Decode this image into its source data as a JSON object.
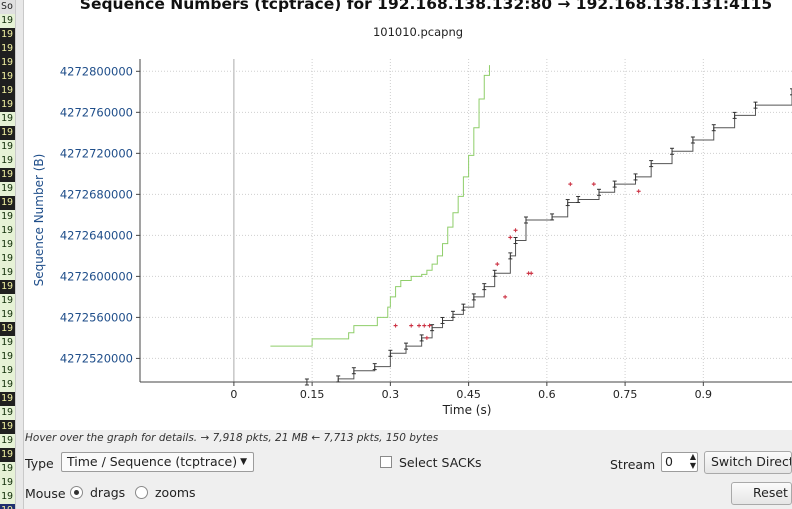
{
  "left_strip": {
    "header": "So",
    "rows": [
      "19",
      "19",
      "19",
      "19",
      "19",
      "19",
      "19",
      "19",
      "19",
      "19",
      "19",
      "19",
      "19",
      "19",
      "19",
      "19",
      "19",
      "19",
      "19",
      "19",
      "19",
      "19",
      "19",
      "19",
      "19",
      "19",
      "19",
      "19",
      "19",
      "19",
      "19",
      "19",
      "19",
      "19",
      "19",
      "19"
    ],
    "row_colors": [
      "#e6f2d6",
      "#1f1f1f",
      "#1f1f1f",
      "#1f1f1f",
      "#1f1f1f",
      "#1f1f1f",
      "#1f1f1f",
      "#e6f2d6",
      "#1f1f1f",
      "#e6f2d6",
      "#e6f2d6",
      "#1f1f1f",
      "#e6f2d6",
      "#1f1f1f",
      "#e6f2d6",
      "#e6f2d6",
      "#e6f2d6",
      "#e6f2d6",
      "#e6f2d6",
      "#1f1f1f",
      "#e6f2d6",
      "#e6f2d6",
      "#1f1f1f",
      "#e6f2d6",
      "#e6f2d6",
      "#e6f2d6",
      "#e6f2d6",
      "#1f1f1f",
      "#e6f2d6",
      "#1f1f1f",
      "#e6f2d6",
      "#1f1f1f",
      "#e6f2d6",
      "#e6f2d6",
      "#e6f2d6",
      "#1f2f6f"
    ]
  },
  "chart_data": {
    "type": "line",
    "title": "Sequence Numbers (tcptrace) for 192.168.138.132:80 → 192.168.138.131:4115",
    "subtitle": "101010.pcapng",
    "xlabel": "Time (s)",
    "ylabel": "Sequence Number (B)",
    "xlim": [
      -0.18,
      1.07
    ],
    "ylim": [
      4272497000,
      4272812000
    ],
    "x_ticks": [
      0,
      0.15,
      0.3,
      0.45,
      0.6,
      0.75,
      0.9
    ],
    "x_tick_labels": [
      "0",
      "0.15",
      "0.3",
      "0.45",
      "0.6",
      "0.75",
      "0.9"
    ],
    "y_ticks": [
      4272520000,
      4272560000,
      4272600000,
      4272640000,
      4272680000,
      4272720000,
      4272760000,
      4272800000
    ],
    "y_tick_labels": [
      "4272520000",
      "4272560000",
      "4272600000",
      "4272640000",
      "4272680000",
      "4272720000",
      "4272760000",
      "4272800000"
    ],
    "grid": true,
    "series": [
      {
        "kind": "window",
        "color": "#8fce6a",
        "points": [
          [
            0.07,
            4272532000
          ],
          [
            0.15,
            4272532000
          ],
          [
            0.15,
            4272539000
          ],
          [
            0.21,
            4272539000
          ],
          [
            0.22,
            4272545000
          ],
          [
            0.23,
            4272552000
          ],
          [
            0.27,
            4272552000
          ],
          [
            0.275,
            4272560000
          ],
          [
            0.29,
            4272560000
          ],
          [
            0.295,
            4272570000
          ],
          [
            0.3,
            4272580000
          ],
          [
            0.31,
            4272590000
          ],
          [
            0.32,
            4272596000
          ],
          [
            0.34,
            4272600000
          ],
          [
            0.36,
            4272602000
          ],
          [
            0.37,
            4272606000
          ],
          [
            0.38,
            4272612000
          ],
          [
            0.39,
            4272620000
          ],
          [
            0.4,
            4272632000
          ],
          [
            0.41,
            4272648000
          ],
          [
            0.42,
            4272662000
          ],
          [
            0.43,
            4272678000
          ],
          [
            0.44,
            4272697000
          ],
          [
            0.45,
            4272718000
          ],
          [
            0.46,
            4272745000
          ],
          [
            0.47,
            4272773000
          ],
          [
            0.48,
            4272796000
          ],
          [
            0.49,
            4272806000
          ]
        ]
      },
      {
        "kind": "sequence",
        "color": "#555555",
        "points": [
          [
            0.14,
            4272497000
          ],
          [
            0.2,
            4272500000
          ],
          [
            0.23,
            4272508000
          ],
          [
            0.27,
            4272512000
          ],
          [
            0.3,
            4272525000
          ],
          [
            0.33,
            4272532000
          ],
          [
            0.36,
            4272540000
          ],
          [
            0.38,
            4272550000
          ],
          [
            0.4,
            4272557000
          ],
          [
            0.42,
            4272563000
          ],
          [
            0.44,
            4272570000
          ],
          [
            0.46,
            4272580000
          ],
          [
            0.48,
            4272590000
          ],
          [
            0.5,
            4272603000
          ],
          [
            0.53,
            4272620000
          ],
          [
            0.54,
            4272635000
          ],
          [
            0.56,
            4272655000
          ],
          [
            0.61,
            4272658000
          ],
          [
            0.64,
            4272672000
          ],
          [
            0.66,
            4272675000
          ],
          [
            0.7,
            4272682000
          ],
          [
            0.73,
            4272690000
          ],
          [
            0.77,
            4272697000
          ],
          [
            0.8,
            4272710000
          ],
          [
            0.84,
            4272722000
          ],
          [
            0.88,
            4272733000
          ],
          [
            0.92,
            4272745000
          ],
          [
            0.96,
            4272757000
          ],
          [
            1.0,
            4272767000
          ],
          [
            1.07,
            4272780000
          ]
        ]
      },
      {
        "kind": "sack",
        "color": "#cc3344",
        "points": [
          [
            0.31,
            4272552000
          ],
          [
            0.34,
            4272552000
          ],
          [
            0.355,
            4272552000
          ],
          [
            0.365,
            4272552000
          ],
          [
            0.375,
            4272552000
          ],
          [
            0.52,
            4272580000
          ],
          [
            0.565,
            4272603000
          ],
          [
            0.57,
            4272603000
          ],
          [
            0.645,
            4272690000
          ],
          [
            0.69,
            4272690000
          ],
          [
            0.776,
            4272683000
          ],
          [
            0.53,
            4272638000
          ],
          [
            0.54,
            4272645000
          ],
          [
            0.505,
            4272612000
          ],
          [
            0.37,
            4272540000
          ]
        ]
      }
    ]
  },
  "controls": {
    "hint": "Hover over the graph for details. → 7,918 pkts, 21 MB ← 7,713 pkts, 150 bytes",
    "type_label": "Type",
    "type_value": "Time / Sequence (tcptrace)",
    "select_sacks_label": "Select SACKs",
    "stream_label": "Stream",
    "stream_value": "0",
    "switch_direction_label": "Switch Directi",
    "mouse_label": "Mouse",
    "drags_label": "drags",
    "zooms_label": "zooms",
    "reset_label": "Reset"
  },
  "colors": {
    "axis_label": "#1f4e8a",
    "window": "#8fce6a",
    "sequence": "#555555",
    "sack": "#cc3344"
  }
}
